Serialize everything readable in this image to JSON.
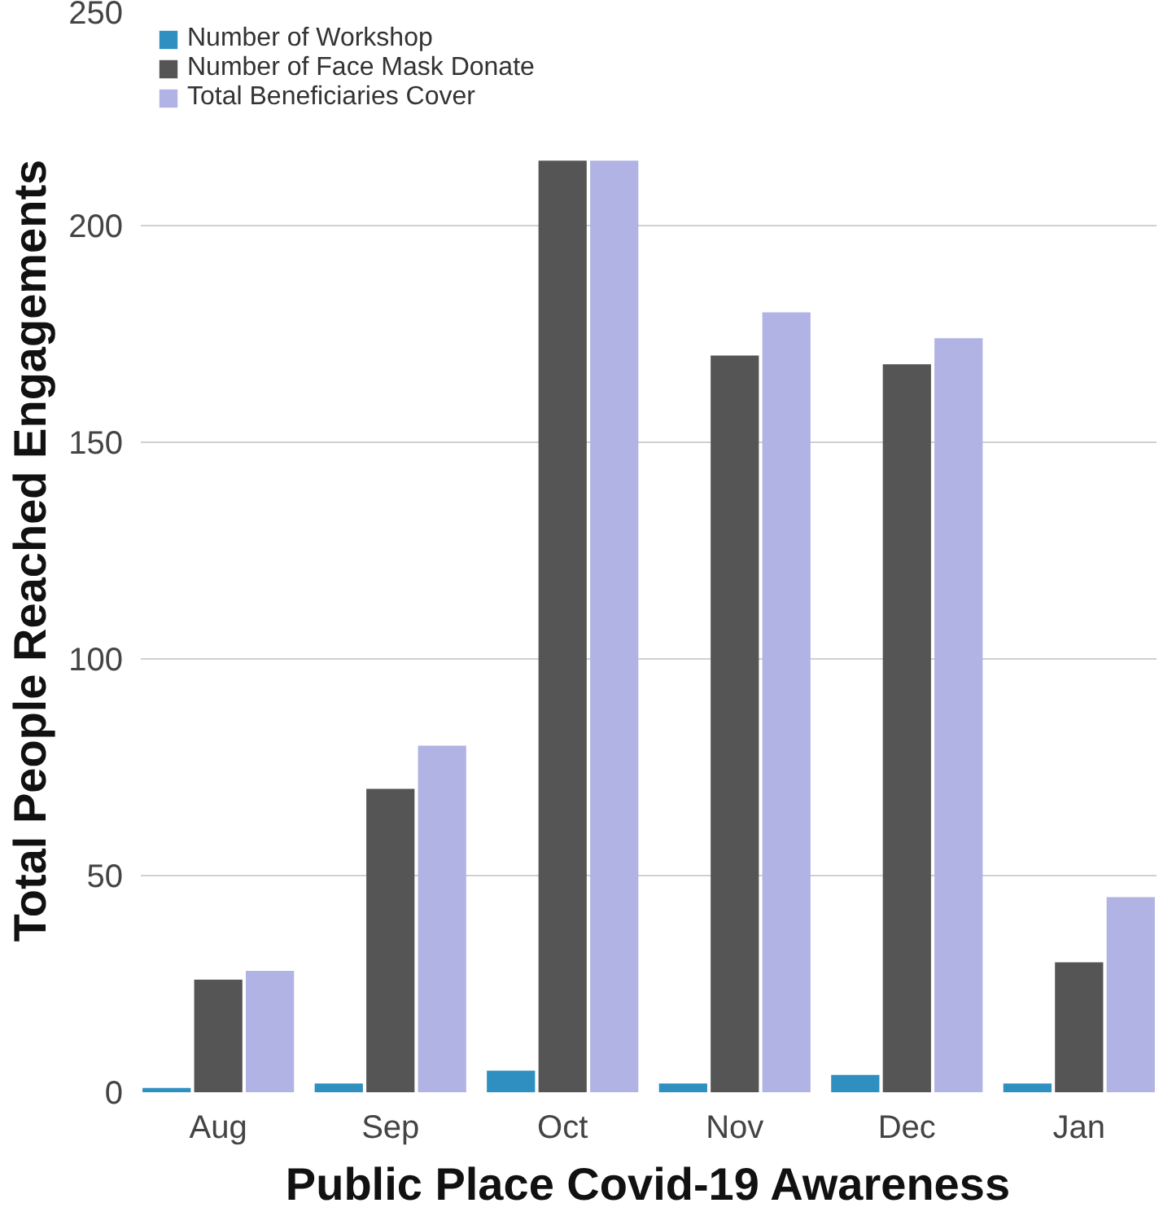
{
  "chart_data": {
    "type": "bar",
    "xlabel": "Public Place Covid-19 Awareness",
    "ylabel": "Total People Reached Engagements",
    "categories": [
      "Aug",
      "Sep",
      "Oct",
      "Nov",
      "Dec",
      "Jan"
    ],
    "series": [
      {
        "name": "Number of Workshop",
        "color": "#2e8fc0",
        "values": [
          1,
          2,
          5,
          2,
          4,
          2
        ]
      },
      {
        "name": "Number of Face Mask Donate",
        "color": "#555555",
        "values": [
          26,
          70,
          215,
          170,
          168,
          30
        ]
      },
      {
        "name": "Total Beneficiaries Cover",
        "color": "#b0b3e3",
        "values": [
          28,
          80,
          215,
          180,
          174,
          45
        ]
      }
    ],
    "ylim": [
      0,
      250
    ],
    "yticks": [
      0,
      50,
      100,
      150,
      200,
      250
    ],
    "grid": "y",
    "legend": "top"
  }
}
